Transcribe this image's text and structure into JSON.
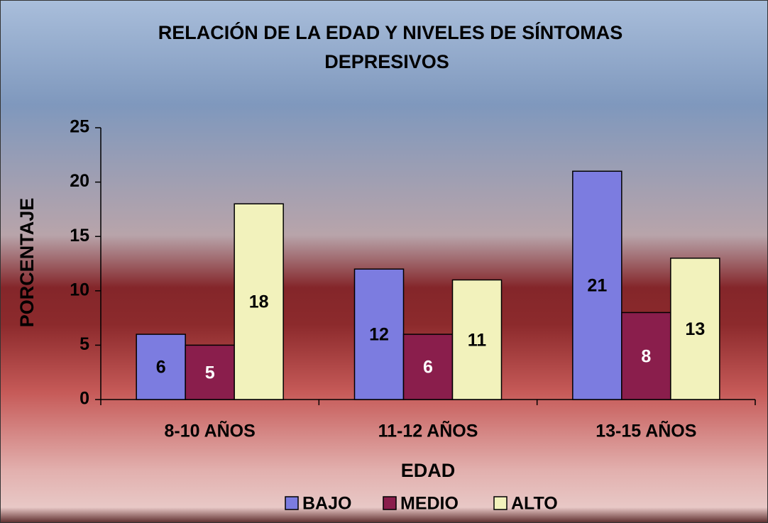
{
  "chart_data": {
    "type": "bar",
    "title": [
      "RELACIÓN DE LA EDAD Y NIVELES DE SÍNTOMAS",
      "DEPRESIVOS"
    ],
    "x_label": "EDAD",
    "y_label": "PORCENTAJE",
    "categories": [
      "8-10 AÑOS",
      "11-12 AÑOS",
      "13-15 AÑOS"
    ],
    "series": [
      {
        "name": "BAJO",
        "color": "#7c7ce0",
        "label_color": "#000000",
        "values": [
          6,
          12,
          21
        ]
      },
      {
        "name": "MEDIO",
        "color": "#8a1e4c",
        "label_color": "#ffffff",
        "values": [
          5,
          6,
          8
        ]
      },
      {
        "name": "ALTO",
        "color": "#f2f2bc",
        "label_color": "#000000",
        "values": [
          18,
          11,
          13
        ]
      }
    ],
    "ylim": [
      0,
      25
    ],
    "yticks": [
      0,
      5,
      10,
      15,
      20,
      25
    ],
    "grid": false,
    "legend": "bottom"
  }
}
